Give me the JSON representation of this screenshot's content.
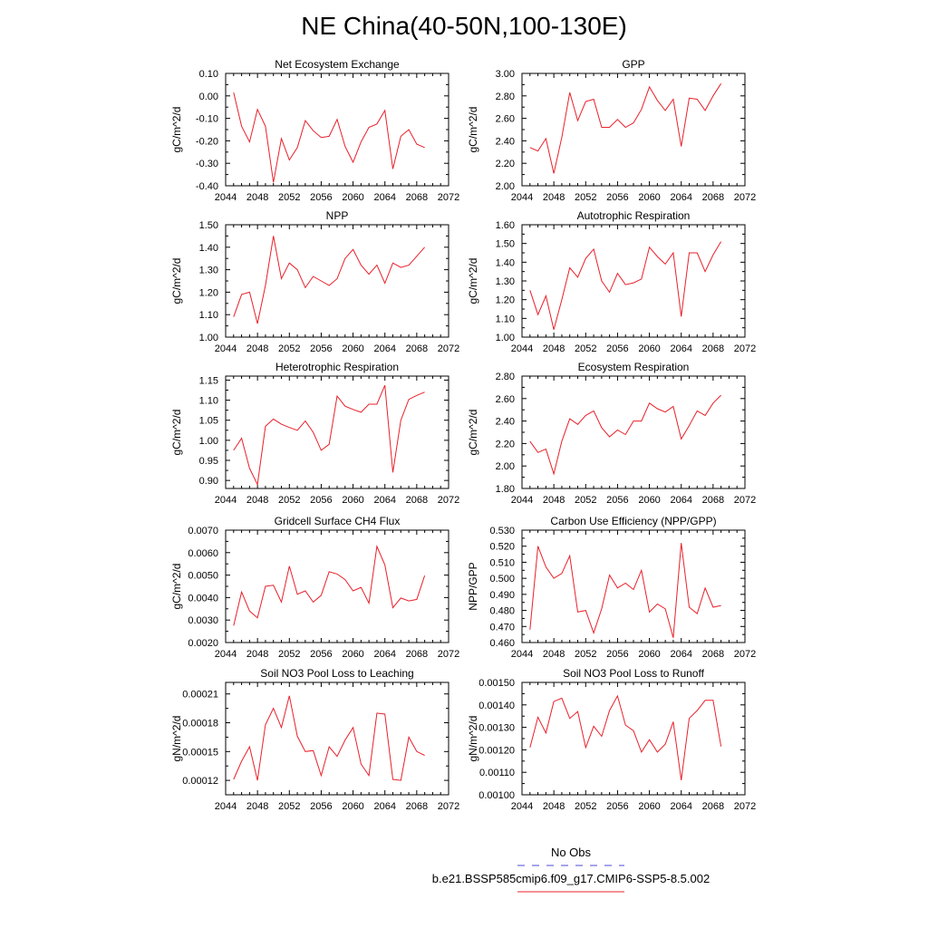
{
  "title": "NE China(40-50N,100-130E)",
  "legend": {
    "obs_label": "No Obs",
    "model_label": "b.e21.BSSP585cmip6.f09_g17.CMIP6-SSP5-8.5.002",
    "obs_color": "#4b4bd6",
    "model_color": "#e8202a"
  },
  "chart_data": [
    {
      "type": "line",
      "title": "Net Ecosystem Exchange",
      "ylabel": "gC/m^2/d",
      "xlim": [
        2044,
        2072
      ],
      "ylim": [
        -0.4,
        0.1
      ],
      "xticks": [
        "2044",
        "2048",
        "2052",
        "2056",
        "2060",
        "2064",
        "2068",
        "2072"
      ],
      "yticks": [
        "0.10",
        "0.00",
        "-0.10",
        "-0.20",
        "-0.30",
        "-0.40"
      ],
      "series": [
        {
          "x": [
            2045,
            2046,
            2047,
            2048,
            2049,
            2050,
            2051,
            2052,
            2053,
            2054,
            2055,
            2056,
            2057,
            2058,
            2059,
            2060,
            2061,
            2062,
            2063,
            2064,
            2065,
            2066,
            2067,
            2068,
            2069
          ],
          "values": [
            0.015,
            -0.135,
            -0.205,
            -0.06,
            -0.135,
            -0.385,
            -0.19,
            -0.285,
            -0.23,
            -0.11,
            -0.155,
            -0.185,
            -0.18,
            -0.105,
            -0.225,
            -0.295,
            -0.205,
            -0.14,
            -0.125,
            -0.065,
            -0.325,
            -0.18,
            -0.15,
            -0.215,
            -0.23
          ]
        }
      ]
    },
    {
      "type": "line",
      "title": "GPP",
      "ylabel": "gC/m^2/d",
      "xlim": [
        2044,
        2072
      ],
      "ylim": [
        2.0,
        3.0
      ],
      "xticks": [
        "2044",
        "2048",
        "2052",
        "2056",
        "2060",
        "2064",
        "2068",
        "2072"
      ],
      "yticks": [
        "3.00",
        "2.80",
        "2.60",
        "2.40",
        "2.20",
        "2.00"
      ],
      "series": [
        {
          "x": [
            2045,
            2046,
            2047,
            2048,
            2049,
            2050,
            2051,
            2052,
            2053,
            2054,
            2055,
            2056,
            2057,
            2058,
            2059,
            2060,
            2061,
            2062,
            2063,
            2064,
            2065,
            2066,
            2067,
            2068,
            2069
          ],
          "values": [
            2.34,
            2.31,
            2.42,
            2.11,
            2.43,
            2.83,
            2.58,
            2.75,
            2.77,
            2.52,
            2.52,
            2.59,
            2.52,
            2.56,
            2.68,
            2.88,
            2.76,
            2.67,
            2.77,
            2.35,
            2.78,
            2.77,
            2.67,
            2.8,
            2.91
          ]
        }
      ]
    },
    {
      "type": "line",
      "title": "NPP",
      "ylabel": "gC/m^2/d",
      "xlim": [
        2044,
        2072
      ],
      "ylim": [
        1.0,
        1.5
      ],
      "xticks": [
        "2044",
        "2048",
        "2052",
        "2056",
        "2060",
        "2064",
        "2068",
        "2072"
      ],
      "yticks": [
        "1.50",
        "1.40",
        "1.30",
        "1.20",
        "1.10",
        "1.00"
      ],
      "series": [
        {
          "x": [
            2045,
            2046,
            2047,
            2048,
            2049,
            2050,
            2051,
            2052,
            2053,
            2054,
            2055,
            2056,
            2057,
            2058,
            2059,
            2060,
            2061,
            2062,
            2063,
            2064,
            2065,
            2066,
            2067,
            2068,
            2069
          ],
          "values": [
            1.09,
            1.19,
            1.2,
            1.06,
            1.23,
            1.45,
            1.26,
            1.33,
            1.3,
            1.22,
            1.27,
            1.25,
            1.23,
            1.26,
            1.35,
            1.39,
            1.32,
            1.28,
            1.32,
            1.24,
            1.33,
            1.31,
            1.32,
            1.36,
            1.4
          ]
        }
      ]
    },
    {
      "type": "line",
      "title": "Autotrophic Respiration",
      "ylabel": "gC/m^2/d",
      "xlim": [
        2044,
        2072
      ],
      "ylim": [
        1.0,
        1.6
      ],
      "xticks": [
        "2044",
        "2048",
        "2052",
        "2056",
        "2060",
        "2064",
        "2068",
        "2072"
      ],
      "yticks": [
        "1.60",
        "1.50",
        "1.40",
        "1.30",
        "1.20",
        "1.10",
        "1.00"
      ],
      "series": [
        {
          "x": [
            2045,
            2046,
            2047,
            2048,
            2049,
            2050,
            2051,
            2052,
            2053,
            2054,
            2055,
            2056,
            2057,
            2058,
            2059,
            2060,
            2061,
            2062,
            2063,
            2064,
            2065,
            2066,
            2067,
            2068,
            2069
          ],
          "values": [
            1.25,
            1.12,
            1.22,
            1.04,
            1.2,
            1.37,
            1.32,
            1.42,
            1.47,
            1.3,
            1.24,
            1.34,
            1.28,
            1.29,
            1.31,
            1.48,
            1.43,
            1.39,
            1.45,
            1.11,
            1.45,
            1.45,
            1.35,
            1.44,
            1.51
          ]
        }
      ]
    },
    {
      "type": "line",
      "title": "Heterotrophic Respiration",
      "ylabel": "gC/m^2/d",
      "xlim": [
        2044,
        2072
      ],
      "ylim": [
        0.88,
        1.16
      ],
      "xticks": [
        "2044",
        "2048",
        "2052",
        "2056",
        "2060",
        "2064",
        "2068",
        "2072"
      ],
      "yticks": [
        "1.15",
        "1.10",
        "1.05",
        "1.00",
        "0.95",
        "0.90"
      ],
      "series": [
        {
          "x": [
            2045,
            2046,
            2047,
            2048,
            2049,
            2050,
            2051,
            2052,
            2053,
            2054,
            2055,
            2056,
            2057,
            2058,
            2059,
            2060,
            2061,
            2062,
            2063,
            2064,
            2065,
            2066,
            2067,
            2068,
            2069
          ],
          "values": [
            0.975,
            1.005,
            0.93,
            0.89,
            1.035,
            1.053,
            1.04,
            1.032,
            1.025,
            1.048,
            1.02,
            0.975,
            0.99,
            1.11,
            1.085,
            1.077,
            1.07,
            1.09,
            1.09,
            1.137,
            0.92,
            1.05,
            1.102,
            1.112,
            1.12
          ]
        }
      ]
    },
    {
      "type": "line",
      "title": "Ecosystem Respiration",
      "ylabel": "gC/m^2/d",
      "xlim": [
        2044,
        2072
      ],
      "ylim": [
        1.8,
        2.8
      ],
      "xticks": [
        "2044",
        "2048",
        "2052",
        "2056",
        "2060",
        "2064",
        "2068",
        "2072"
      ],
      "yticks": [
        "2.80",
        "2.60",
        "2.40",
        "2.20",
        "2.00",
        "1.80"
      ],
      "series": [
        {
          "x": [
            2045,
            2046,
            2047,
            2048,
            2049,
            2050,
            2051,
            2052,
            2053,
            2054,
            2055,
            2056,
            2057,
            2058,
            2059,
            2060,
            2061,
            2062,
            2063,
            2064,
            2065,
            2066,
            2067,
            2068,
            2069
          ],
          "values": [
            2.22,
            2.12,
            2.15,
            1.93,
            2.22,
            2.42,
            2.37,
            2.45,
            2.49,
            2.34,
            2.26,
            2.32,
            2.28,
            2.4,
            2.4,
            2.56,
            2.51,
            2.48,
            2.53,
            2.24,
            2.36,
            2.49,
            2.45,
            2.56,
            2.63
          ]
        }
      ]
    },
    {
      "type": "line",
      "title": "Gridcell Surface CH4 Flux",
      "ylabel": "gC/m^2/d",
      "xlim": [
        2044,
        2072
      ],
      "ylim": [
        0.002,
        0.007
      ],
      "xticks": [
        "2044",
        "2048",
        "2052",
        "2056",
        "2060",
        "2064",
        "2068",
        "2072"
      ],
      "yticks": [
        "0.0070",
        "0.0060",
        "0.0050",
        "0.0040",
        "0.0030",
        "0.0020"
      ],
      "series": [
        {
          "x": [
            2045,
            2046,
            2047,
            2048,
            2049,
            2050,
            2051,
            2052,
            2053,
            2054,
            2055,
            2056,
            2057,
            2058,
            2059,
            2060,
            2061,
            2062,
            2063,
            2064,
            2065,
            2066,
            2067,
            2068,
            2069
          ],
          "values": [
            0.00275,
            0.00425,
            0.0034,
            0.0031,
            0.0045,
            0.00455,
            0.0038,
            0.0054,
            0.00415,
            0.0043,
            0.0038,
            0.0041,
            0.00515,
            0.00505,
            0.0048,
            0.0043,
            0.00445,
            0.00375,
            0.00628,
            0.00545,
            0.00355,
            0.00398,
            0.00385,
            0.00392,
            0.00498
          ]
        }
      ]
    },
    {
      "type": "line",
      "title": "Carbon Use Efficiency (NPP/GPP)",
      "ylabel": "NPP/GPP",
      "xlim": [
        2044,
        2072
      ],
      "ylim": [
        0.46,
        0.53
      ],
      "xticks": [
        "2044",
        "2048",
        "2052",
        "2056",
        "2060",
        "2064",
        "2068",
        "2072"
      ],
      "yticks": [
        "0.530",
        "0.520",
        "0.510",
        "0.500",
        "0.490",
        "0.480",
        "0.470",
        "0.460"
      ],
      "series": [
        {
          "x": [
            2045,
            2046,
            2047,
            2048,
            2049,
            2050,
            2051,
            2052,
            2053,
            2054,
            2055,
            2056,
            2057,
            2058,
            2059,
            2060,
            2061,
            2062,
            2063,
            2064,
            2065,
            2066,
            2067,
            2068,
            2069
          ],
          "values": [
            0.468,
            0.52,
            0.507,
            0.5,
            0.503,
            0.514,
            0.479,
            0.48,
            0.466,
            0.481,
            0.502,
            0.494,
            0.497,
            0.493,
            0.505,
            0.479,
            0.484,
            0.481,
            0.463,
            0.522,
            0.482,
            0.478,
            0.494,
            0.482,
            0.483
          ]
        }
      ]
    },
    {
      "type": "line",
      "title": "Soil NO3 Pool Loss to Leaching",
      "ylabel": "gN/m^2/d",
      "xlim": [
        2044,
        2072
      ],
      "ylim": [
        0.000105,
        0.000222
      ],
      "xticks": [
        "2044",
        "2048",
        "2052",
        "2056",
        "2060",
        "2064",
        "2068",
        "2072"
      ],
      "yticks": [
        "0.00021",
        "0.00018",
        "0.00015",
        "0.00012"
      ],
      "ytick_values": [
        0.00021,
        0.00018,
        0.00015,
        0.00012
      ],
      "series": [
        {
          "x": [
            2045,
            2046,
            2047,
            2048,
            2049,
            2050,
            2051,
            2052,
            2053,
            2054,
            2055,
            2056,
            2057,
            2058,
            2059,
            2060,
            2061,
            2062,
            2063,
            2064,
            2065,
            2066,
            2067,
            2068,
            2069
          ],
          "values": [
            0.000121,
            0.00014,
            0.000155,
            0.00012,
            0.000178,
            0.000195,
            0.000175,
            0.000208,
            0.000166,
            0.00015,
            0.000151,
            0.000125,
            0.000155,
            0.000145,
            0.000162,
            0.000175,
            0.000137,
            0.000125,
            0.00019,
            0.000189,
            0.000121,
            0.00012,
            0.000165,
            0.00015,
            0.000146
          ]
        }
      ]
    },
    {
      "type": "line",
      "title": "Soil NO3 Pool Loss to Runoff",
      "ylabel": "gN/m^2/d",
      "xlim": [
        2044,
        2072
      ],
      "ylim": [
        0.001,
        0.0015
      ],
      "xticks": [
        "2044",
        "2048",
        "2052",
        "2056",
        "2060",
        "2064",
        "2068",
        "2072"
      ],
      "yticks": [
        "0.00150",
        "0.00140",
        "0.00130",
        "0.00120",
        "0.00110",
        "0.00100"
      ],
      "series": [
        {
          "x": [
            2045,
            2046,
            2047,
            2048,
            2049,
            2050,
            2051,
            2052,
            2053,
            2054,
            2055,
            2056,
            2057,
            2058,
            2059,
            2060,
            2061,
            2062,
            2063,
            2064,
            2065,
            2066,
            2067,
            2068,
            2069
          ],
          "values": [
            0.00121,
            0.001345,
            0.001275,
            0.001415,
            0.00143,
            0.00134,
            0.00137,
            0.00121,
            0.001305,
            0.00126,
            0.001375,
            0.00144,
            0.00131,
            0.001285,
            0.00119,
            0.001245,
            0.00119,
            0.001225,
            0.001325,
            0.001065,
            0.00134,
            0.001375,
            0.00142,
            0.00142,
            0.001215
          ]
        }
      ]
    }
  ]
}
